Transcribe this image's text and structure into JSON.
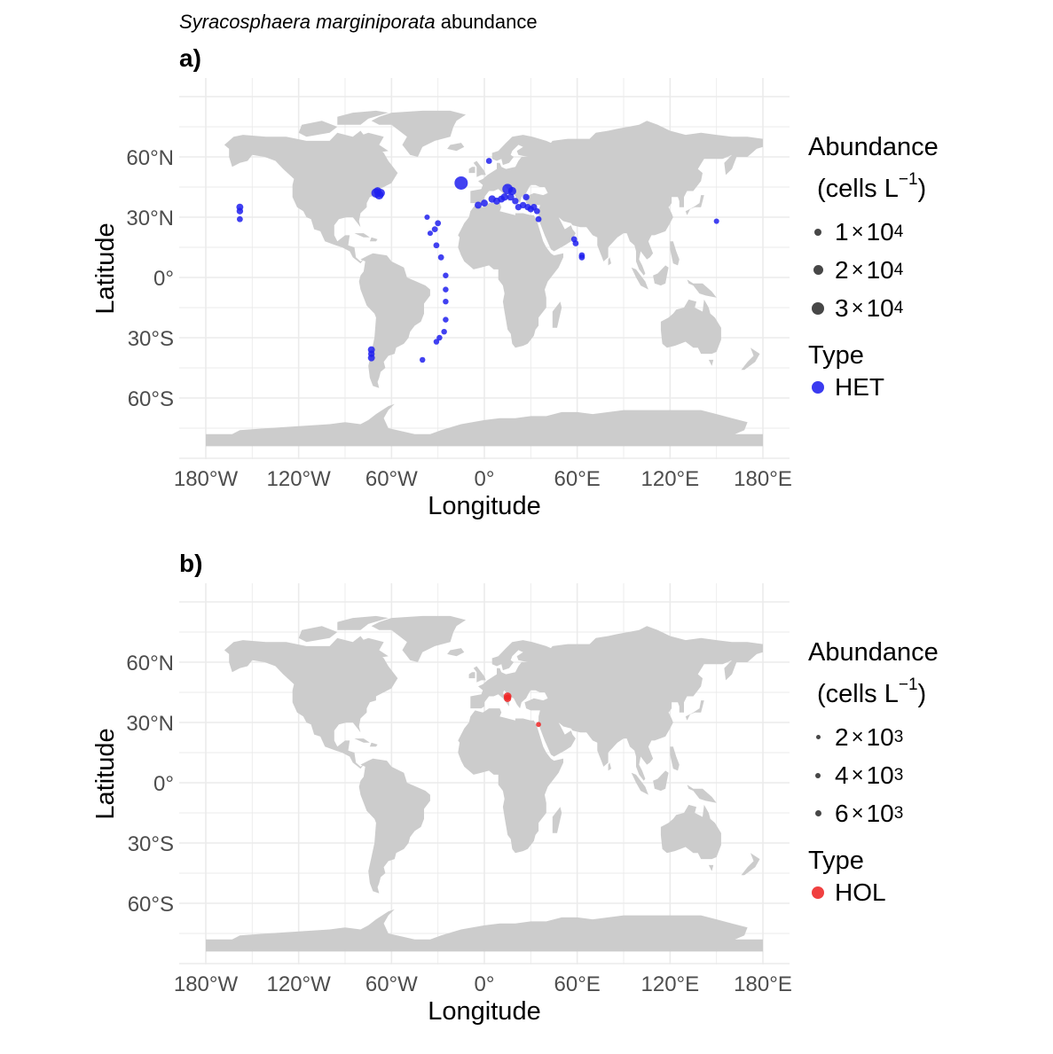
{
  "title": {
    "species": "Syracosphaera marginiporata",
    "suffix": " abundance"
  },
  "colors": {
    "land": "#cccccc",
    "grid": "#ebebeb",
    "het": "#2020ee",
    "hol": "#ee2424",
    "legend_gray": "#474747",
    "tick": "#4d4d4d"
  },
  "axes": {
    "x_title": "Longitude",
    "y_title": "Latitude",
    "x_ticks": [
      {
        "lon": -180,
        "label": "180°W"
      },
      {
        "lon": -120,
        "label": "120°W"
      },
      {
        "lon": -60,
        "label": "60°W"
      },
      {
        "lon": 0,
        "label": "0°"
      },
      {
        "lon": 60,
        "label": "60°E"
      },
      {
        "lon": 120,
        "label": "120°E"
      },
      {
        "lon": 180,
        "label": "180°E"
      }
    ],
    "y_ticks": [
      {
        "lat": 60,
        "label": "60°N"
      },
      {
        "lat": 30,
        "label": "30°N"
      },
      {
        "lat": 0,
        "label": "0°"
      },
      {
        "lat": -30,
        "label": "30°S"
      },
      {
        "lat": -60,
        "label": "60°S"
      }
    ],
    "xlim": [
      -180,
      180
    ],
    "ylim": [
      -90,
      90
    ]
  },
  "chart_data": [
    {
      "type": "scatter",
      "panel": "a)",
      "x_field": "longitude",
      "y_field": "latitude",
      "size_field": "abundance (cells L-1)",
      "legend": {
        "size_title_1": "Abundance",
        "size_title_2a": "(cells L",
        "size_title_sup": "−1",
        "size_title_2b": ")",
        "size_entries": [
          {
            "coef": "1",
            "times": "×",
            "base": "10",
            "exp": "4",
            "value": 10000
          },
          {
            "coef": "2",
            "times": "×",
            "base": "10",
            "exp": "4",
            "value": 20000
          },
          {
            "coef": "3",
            "times": "×",
            "base": "10",
            "exp": "4",
            "value": 30000
          }
        ],
        "type_title": "Type",
        "type_entries": [
          {
            "label": "HET",
            "color": "#2020ee"
          }
        ]
      },
      "size_range": [
        0,
        30000
      ],
      "points": [
        {
          "lon": -158,
          "lat": 35,
          "abundance": 5000
        },
        {
          "lon": -158,
          "lat": 33,
          "abundance": 4000
        },
        {
          "lon": -158,
          "lat": 29,
          "abundance": 3000
        },
        {
          "lon": -70,
          "lat": 42,
          "abundance": 12000
        },
        {
          "lon": -68,
          "lat": 41,
          "abundance": 10000
        },
        {
          "lon": -67,
          "lat": 42,
          "abundance": 9000
        },
        {
          "lon": -69,
          "lat": 43,
          "abundance": 7000
        },
        {
          "lon": -15,
          "lat": 47,
          "abundance": 30000
        },
        {
          "lon": 3,
          "lat": 58,
          "abundance": 3000
        },
        {
          "lon": -4,
          "lat": 36,
          "abundance": 5000
        },
        {
          "lon": 0,
          "lat": 37,
          "abundance": 5000
        },
        {
          "lon": 5,
          "lat": 39,
          "abundance": 6000
        },
        {
          "lon": 8,
          "lat": 38,
          "abundance": 5000
        },
        {
          "lon": 11,
          "lat": 39,
          "abundance": 5000
        },
        {
          "lon": 13,
          "lat": 40,
          "abundance": 6000
        },
        {
          "lon": 15,
          "lat": 44,
          "abundance": 16000
        },
        {
          "lon": 18,
          "lat": 43,
          "abundance": 8000
        },
        {
          "lon": 17,
          "lat": 40,
          "abundance": 5000
        },
        {
          "lon": 20,
          "lat": 38,
          "abundance": 4000
        },
        {
          "lon": 22,
          "lat": 35,
          "abundance": 4000
        },
        {
          "lon": 25,
          "lat": 36,
          "abundance": 4000
        },
        {
          "lon": 27,
          "lat": 40,
          "abundance": 4000
        },
        {
          "lon": 28,
          "lat": 35,
          "abundance": 4000
        },
        {
          "lon": 30,
          "lat": 34,
          "abundance": 4000
        },
        {
          "lon": 32,
          "lat": 35,
          "abundance": 4000
        },
        {
          "lon": 34,
          "lat": 33,
          "abundance": 3000
        },
        {
          "lon": 35,
          "lat": 29,
          "abundance": 3000
        },
        {
          "lon": -37,
          "lat": 30,
          "abundance": 2000
        },
        {
          "lon": -30,
          "lat": 27,
          "abundance": 3000
        },
        {
          "lon": -32,
          "lat": 24,
          "abundance": 3000
        },
        {
          "lon": -35,
          "lat": 22,
          "abundance": 2000
        },
        {
          "lon": -31,
          "lat": 16,
          "abundance": 3000
        },
        {
          "lon": -28,
          "lat": 10,
          "abundance": 3000
        },
        {
          "lon": -25,
          "lat": 1,
          "abundance": 2500
        },
        {
          "lon": -25,
          "lat": -6,
          "abundance": 2500
        },
        {
          "lon": -25,
          "lat": -12,
          "abundance": 2500
        },
        {
          "lon": -25,
          "lat": -21,
          "abundance": 2500
        },
        {
          "lon": -26,
          "lat": -27,
          "abundance": 2500
        },
        {
          "lon": -29,
          "lat": -30,
          "abundance": 2500
        },
        {
          "lon": -31,
          "lat": -32,
          "abundance": 2500
        },
        {
          "lon": -40,
          "lat": -41,
          "abundance": 2500
        },
        {
          "lon": -73,
          "lat": -36,
          "abundance": 5000
        },
        {
          "lon": -73,
          "lat": -38,
          "abundance": 4000
        },
        {
          "lon": -73,
          "lat": -40,
          "abundance": 5000
        },
        {
          "lon": 58,
          "lat": 19,
          "abundance": 3000
        },
        {
          "lon": 59,
          "lat": 17,
          "abundance": 3000
        },
        {
          "lon": 63,
          "lat": 11,
          "abundance": 3000
        },
        {
          "lon": 63,
          "lat": 10,
          "abundance": 3000
        },
        {
          "lon": 150,
          "lat": 28,
          "abundance": 2000
        }
      ]
    },
    {
      "type": "scatter",
      "panel": "b)",
      "x_field": "longitude",
      "y_field": "latitude",
      "size_field": "abundance (cells L-1)",
      "legend": {
        "size_title_1": "Abundance",
        "size_title_2a": "(cells L",
        "size_title_sup": "−1",
        "size_title_2b": ")",
        "size_entries": [
          {
            "coef": "2",
            "times": "×",
            "base": "10",
            "exp": "3",
            "value": 2000
          },
          {
            "coef": "4",
            "times": "×",
            "base": "10",
            "exp": "3",
            "value": 4000
          },
          {
            "coef": "6",
            "times": "×",
            "base": "10",
            "exp": "3",
            "value": 6000
          }
        ],
        "type_title": "Type",
        "type_entries": [
          {
            "label": "HOL",
            "color": "#ee2424"
          }
        ]
      },
      "size_range": [
        0,
        30000
      ],
      "points": [
        {
          "lon": 15,
          "lat": 43,
          "abundance": 7000
        },
        {
          "lon": 15,
          "lat": 42,
          "abundance": 6000
        },
        {
          "lon": 35,
          "lat": 29,
          "abundance": 1500
        }
      ]
    }
  ]
}
